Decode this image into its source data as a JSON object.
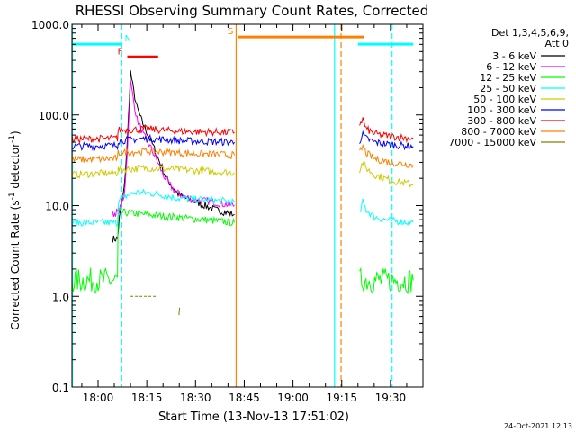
{
  "chart_data": {
    "type": "line",
    "title": "RHESSI Observing Summary Count Rates, Corrected",
    "xlabel": "Start Time (13-Nov-13 17:51:02)",
    "ylabel_main": "Corrected Count Rate (s",
    "ylabel_sup1": "-1",
    "ylabel_mid": " detector",
    "ylabel_sup2": "-1",
    "ylabel_end": ")",
    "yscale": "log",
    "ylim": [
      0.1,
      1000
    ],
    "xlim_minutes": [
      -8.03,
      100
    ],
    "xtick_labels": [
      "18:00",
      "18:15",
      "18:30",
      "18:45",
      "19:00",
      "19:15",
      "19:30"
    ],
    "xtick_minutes": [
      0,
      15,
      30,
      45,
      60,
      75,
      90
    ],
    "ytick_labels": [
      "0.1",
      "1.0",
      "10.0",
      "100.0",
      "1000.0"
    ],
    "ytick_values": [
      0.1,
      1,
      10,
      100,
      1000
    ],
    "legend_header_1": "Det 1,3,4,5,6,9,",
    "legend_header_2": "Att 0",
    "series": [
      {
        "name": "3 - 6 keV",
        "color": "#000000",
        "segments": [
          {
            "x": [
              4.5,
              6.0,
              6.5,
              8.0,
              9.0,
              10.0,
              11.0,
              12.0,
              13.5,
              15.0,
              17.0,
              19.0,
              21.0,
              23.0,
              25.0,
              27.0,
              30.0,
              33.0,
              36.0,
              39.0,
              42.0
            ],
            "y": [
              4.3,
              4.3,
              7.0,
              15,
              50,
              300,
              180,
              120,
              85,
              65,
              45,
              30,
              20,
              16,
              13,
              12,
              11,
              10,
              9,
              8.5,
              8
            ]
          }
        ]
      },
      {
        "name": "6 - 12 keV",
        "color": "#ff00ff",
        "segments": [
          {
            "x": [
              4.5,
              6.0,
              6.5,
              8.0,
              9.0,
              10.0,
              11.0,
              12.0,
              14.0,
              16.0,
              18.0,
              20.0,
              22.0,
              24.0,
              26.0,
              28.0,
              31.0,
              35.0,
              38.0,
              42.0
            ],
            "y": [
              8.0,
              8.5,
              9.0,
              12,
              40,
              230,
              140,
              90,
              60,
              45,
              32,
              22,
              17,
              14,
              13,
              12,
              11.5,
              11,
              10.5,
              10
            ]
          }
        ]
      },
      {
        "name": "12 - 25 keV",
        "color": "#00ff00",
        "segments": [
          {
            "x": [
              -8,
              6,
              6.2,
              42
            ],
            "y": [
              1.5,
              1.5,
              8.5,
              6.5
            ]
          },
          {
            "x": [
              80.5,
              97
            ],
            "y": [
              1.5,
              1.5
            ]
          }
        ]
      },
      {
        "name": "25 - 50 keV",
        "color": "#00ffff",
        "segments": [
          {
            "x": [
              -8,
              6,
              6.2,
              9,
              12,
              18,
              25,
              42
            ],
            "y": [
              6.5,
              6.5,
              11,
              13,
              14,
              13.5,
              12,
              11
            ]
          },
          {
            "x": [
              80.5,
              81.5,
              82.5,
              85,
              90,
              97
            ],
            "y": [
              8,
              11,
              9,
              7.5,
              6.8,
              6.5
            ]
          }
        ]
      },
      {
        "name": "50 - 100 keV",
        "color": "#cccc00",
        "segments": [
          {
            "x": [
              -8,
              6,
              6.2,
              15,
              25,
              42
            ],
            "y": [
              22,
              23,
              25,
              26,
              25,
              23
            ]
          },
          {
            "x": [
              80.5,
              81.5,
              82.5,
              85,
              90,
              97
            ],
            "y": [
              25,
              30,
              26,
              22,
              19,
              17
            ]
          }
        ]
      },
      {
        "name": "100 - 300 keV",
        "color": "#0000ff",
        "segments": [
          {
            "x": [
              -8,
              6,
              6.2,
              15,
              25,
              42
            ],
            "y": [
              45,
              46,
              52,
              55,
              52,
              50
            ]
          },
          {
            "x": [
              80.5,
              81.5,
              82.5,
              85,
              90,
              97
            ],
            "y": [
              52,
              60,
              55,
              50,
              47,
              45
            ]
          }
        ]
      },
      {
        "name": "300 - 800 keV",
        "color": "#ff0000",
        "segments": [
          {
            "x": [
              -8,
              6,
              6.2,
              15,
              25,
              42
            ],
            "y": [
              54,
              55,
              68,
              70,
              66,
              64
            ]
          },
          {
            "x": [
              80.5,
              81.5,
              82.5,
              85,
              90,
              97
            ],
            "y": [
              80,
              90,
              70,
              62,
              58,
              55
            ]
          }
        ]
      },
      {
        "name": "800 - 7000 keV",
        "color": "#ff8000",
        "segments": [
          {
            "x": [
              -8,
              6,
              6.2,
              15,
              25,
              42
            ],
            "y": [
              32,
              33,
              38,
              40,
              38,
              36
            ]
          },
          {
            "x": [
              80.5,
              81.5,
              82.5,
              85,
              90,
              97
            ],
            "y": [
              38,
              45,
              38,
              33,
              30,
              28
            ]
          }
        ]
      },
      {
        "name": "7000 - 15000 keV",
        "color": "#808000",
        "segments": [
          {
            "x": [
              10,
              18
            ],
            "y": [
              1.0,
              1.0
            ]
          },
          {
            "x": [
              24.9,
              25.1
            ],
            "y": [
              0.62,
              0.75
            ]
          }
        ]
      }
    ],
    "flags": [
      {
        "label": "N",
        "color": "#00ffff",
        "segments": [
          [
            -8,
            7
          ],
          [
            80,
            97
          ]
        ],
        "y_frac": 0.055
      },
      {
        "label": "F",
        "color": "#ff0000",
        "segments": [
          [
            9,
            18.5
          ]
        ],
        "y_frac": 0.09
      },
      {
        "label": "S",
        "color": "#ff8000",
        "segments": [
          [
            43,
            82
          ]
        ],
        "y_frac": 0.035
      }
    ],
    "vlines": [
      {
        "x": -7.9,
        "color": "#00ffff",
        "style": "solid"
      },
      {
        "x": 7.3,
        "color": "#00ffff",
        "style": "dashed"
      },
      {
        "x": 42.5,
        "color": "#ff8000",
        "style": "solid"
      },
      {
        "x": 72.8,
        "color": "#00ffff",
        "style": "solid"
      },
      {
        "x": 74.8,
        "color": "#ff8000",
        "style": "dashed"
      },
      {
        "x": 90.5,
        "color": "#00ffff",
        "style": "dashed"
      }
    ]
  },
  "footer_date": "24-Oct-2021 12:13"
}
